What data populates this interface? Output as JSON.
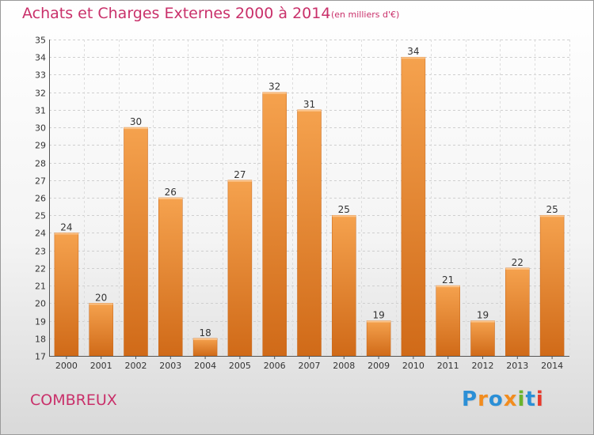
{
  "chart_data": {
    "type": "bar",
    "title": "Achats et Charges Externes 2000 à 2014",
    "subtitle": "(en milliers d'€)",
    "categories": [
      "2000",
      "2001",
      "2002",
      "2003",
      "2004",
      "2005",
      "2006",
      "2007",
      "2008",
      "2009",
      "2010",
      "2011",
      "2012",
      "2013",
      "2014"
    ],
    "values": [
      24,
      20,
      30,
      26,
      18,
      27,
      32,
      31,
      25,
      19,
      34,
      21,
      19,
      22,
      25
    ],
    "ylim": [
      17,
      35
    ],
    "yticks": [
      17,
      18,
      19,
      20,
      21,
      22,
      23,
      24,
      25,
      26,
      27,
      28,
      29,
      30,
      31,
      32,
      33,
      34,
      35
    ],
    "grid": true,
    "legend": "none",
    "bar_color": "#f0963c"
  },
  "footer": {
    "commune": "COMBREUX",
    "brand_letters": [
      {
        "ch": "P",
        "color": "#2b8fd6"
      },
      {
        "ch": "r",
        "color": "#f28c1e"
      },
      {
        "ch": "o",
        "color": "#2b8fd6"
      },
      {
        "ch": "x",
        "color": "#f28c1e"
      },
      {
        "ch": "i",
        "color": "#6ab42d"
      },
      {
        "ch": "t",
        "color": "#2b8fd6"
      },
      {
        "ch": "i",
        "color": "#e8392b"
      }
    ]
  },
  "colors": {
    "title": "#c9306a",
    "bar_light": "#f5a24e",
    "bar_dark": "#d06a18"
  }
}
